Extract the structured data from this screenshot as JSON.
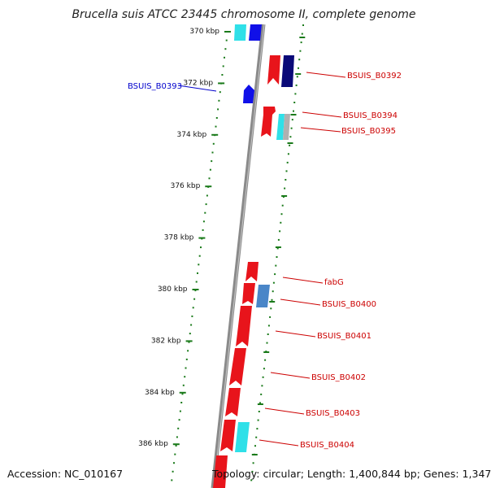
{
  "title": "Brucella suis ATCC 23445 chromosome II, complete genome",
  "accession": "Accession: NC_010167",
  "summary": "Topology: circular; Length: 1,400,844 bp; Genes: 1,347",
  "colors": {
    "forward_red": "#e8141b",
    "reverse_red": "#e8141b",
    "cyan": "#2fe0e8",
    "blue": "#1010e8",
    "navy": "#0a0a78",
    "steel_blue": "#4a86c8",
    "gray": "#b0b0b0",
    "backbone": "#8a8a8a",
    "tick_green": "#1a7a1a",
    "label_red": "#cc0000",
    "label_blue": "#0000cc"
  },
  "kbp_ticks": [
    {
      "label": "370 kbp",
      "kbp": 370
    },
    {
      "label": "372 kbp",
      "kbp": 372
    },
    {
      "label": "374 kbp",
      "kbp": 374
    },
    {
      "label": "376 kbp",
      "kbp": 376
    },
    {
      "label": "378 kbp",
      "kbp": 378
    },
    {
      "label": "380 kbp",
      "kbp": 380
    },
    {
      "label": "382 kbp",
      "kbp": 382
    },
    {
      "label": "384 kbp",
      "kbp": 384
    },
    {
      "label": "386 kbp",
      "kbp": 386
    }
  ],
  "gene_labels": [
    {
      "text": "BSUIS_B0392",
      "color": "red"
    },
    {
      "text": "BSUIS_B0393",
      "color": "blue"
    },
    {
      "text": "BSUIS_B0394",
      "color": "red"
    },
    {
      "text": "BSUIS_B0395",
      "color": "red"
    },
    {
      "text": "fabG",
      "color": "red"
    },
    {
      "text": "BSUIS_B0400",
      "color": "red"
    },
    {
      "text": "BSUIS_B0401",
      "color": "red"
    },
    {
      "text": "BSUIS_B0402",
      "color": "red"
    },
    {
      "text": "BSUIS_B0403",
      "color": "red"
    },
    {
      "text": "BSUIS_B0404",
      "color": "red"
    }
  ]
}
